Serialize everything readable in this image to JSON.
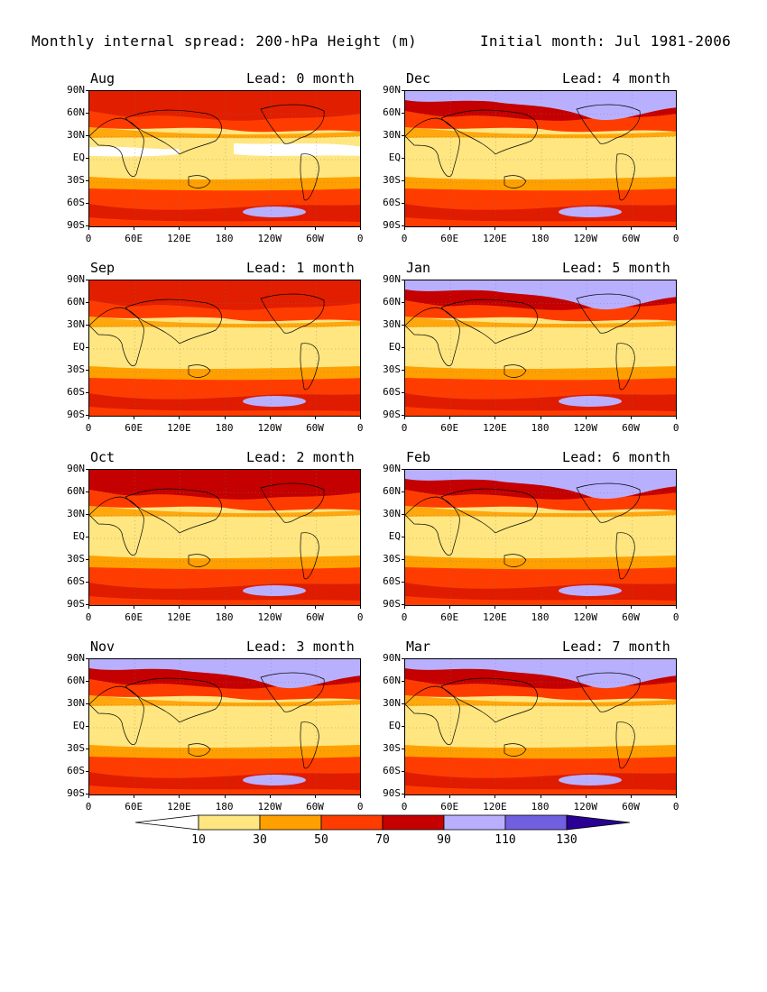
{
  "figure": {
    "title_left": "Monthly internal spread: 200-hPa Height (m)",
    "title_right": "Initial month: Jul 1981-2006"
  },
  "lat_ticks": [
    "90N",
    "60N",
    "30N",
    "EQ",
    "30S",
    "60S",
    "90S"
  ],
  "lon_ticks": [
    "0",
    "60E",
    "120E",
    "180",
    "120W",
    "60W",
    "0"
  ],
  "panels": [
    {
      "month": "Aug",
      "lead": "Lead: 0 month",
      "high": 0.2
    },
    {
      "month": "Sep",
      "lead": "Lead: 1 month",
      "high": 0.3
    },
    {
      "month": "Oct",
      "lead": "Lead: 2 month",
      "high": 0.5
    },
    {
      "month": "Nov",
      "lead": "Lead: 3 month",
      "high": 0.8
    },
    {
      "month": "Dec",
      "lead": "Lead: 4 month",
      "high": 0.9
    },
    {
      "month": "Jan",
      "lead": "Lead: 5 month",
      "high": 1.0
    },
    {
      "month": "Feb",
      "lead": "Lead: 6 month",
      "high": 1.0
    },
    {
      "month": "Mar",
      "lead": "Lead: 7 month",
      "high": 0.9
    }
  ],
  "colorbar": {
    "levels": [
      "10",
      "30",
      "50",
      "70",
      "90",
      "110",
      "130"
    ],
    "colors": [
      "#ffffff",
      "#ffe680",
      "#ffa000",
      "#ff3c00",
      "#c40000",
      "#b8b0ff",
      "#7060e0",
      "#2a0094"
    ]
  }
}
